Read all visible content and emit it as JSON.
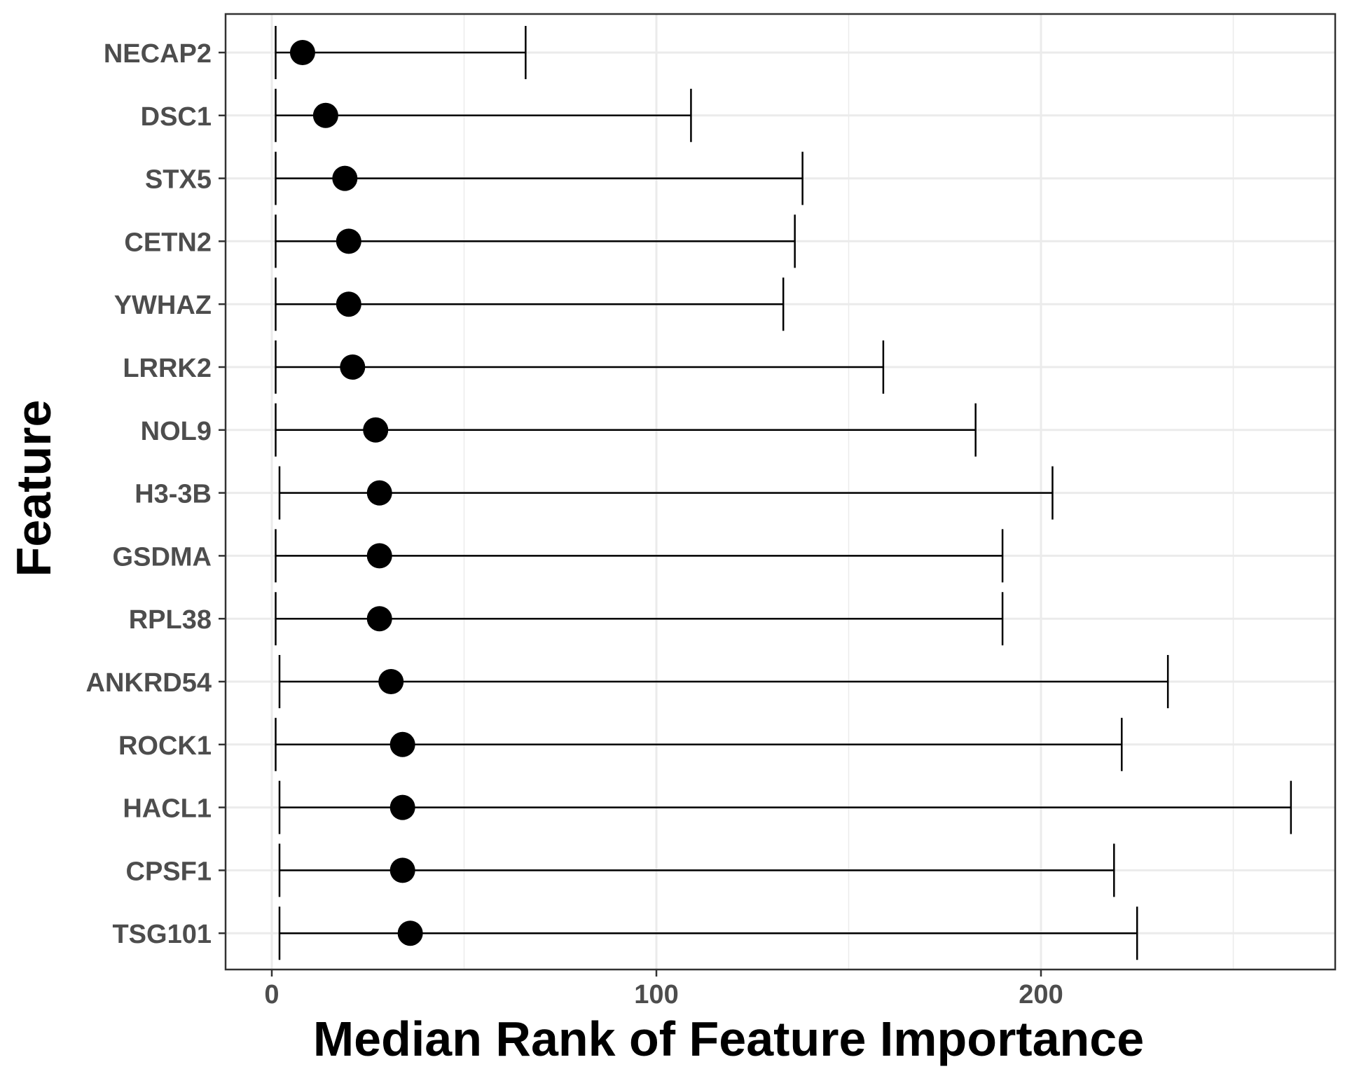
{
  "chart_data": {
    "type": "scatter",
    "subtype": "dot-with-range",
    "xlabel": "Median Rank of Feature Importance",
    "ylabel": "Feature",
    "xlim": [
      -12,
      275
    ],
    "xticks": [
      0,
      100,
      200
    ],
    "xtick_labels": [
      "0",
      "100",
      "200"
    ],
    "x_minor_gridlines": [
      50,
      150,
      250
    ],
    "grid": true,
    "legend": "none",
    "colors": {
      "point": "#000000",
      "grid": "#ebebeb",
      "panel_border": "#333333",
      "tick_text": "#4d4d4d"
    },
    "categories": [
      "NECAP2",
      "DSC1",
      "STX5",
      "CETN2",
      "YWHAZ",
      "LRRK2",
      "NOL9",
      "H3-3B",
      "GSDMA",
      "RPL38",
      "ANKRD54",
      "ROCK1",
      "HACL1",
      "CPSF1",
      "TSG101"
    ],
    "median": [
      8,
      14,
      19,
      20,
      20,
      21,
      27,
      28,
      28,
      28,
      31,
      34,
      34,
      34,
      36
    ],
    "min": [
      1,
      1,
      1,
      1,
      1,
      1,
      1,
      2,
      1,
      1,
      2,
      1,
      2,
      2,
      2
    ],
    "max": [
      66,
      109,
      138,
      136,
      133,
      159,
      183,
      203,
      190,
      190,
      233,
      221,
      265,
      219,
      225
    ]
  }
}
